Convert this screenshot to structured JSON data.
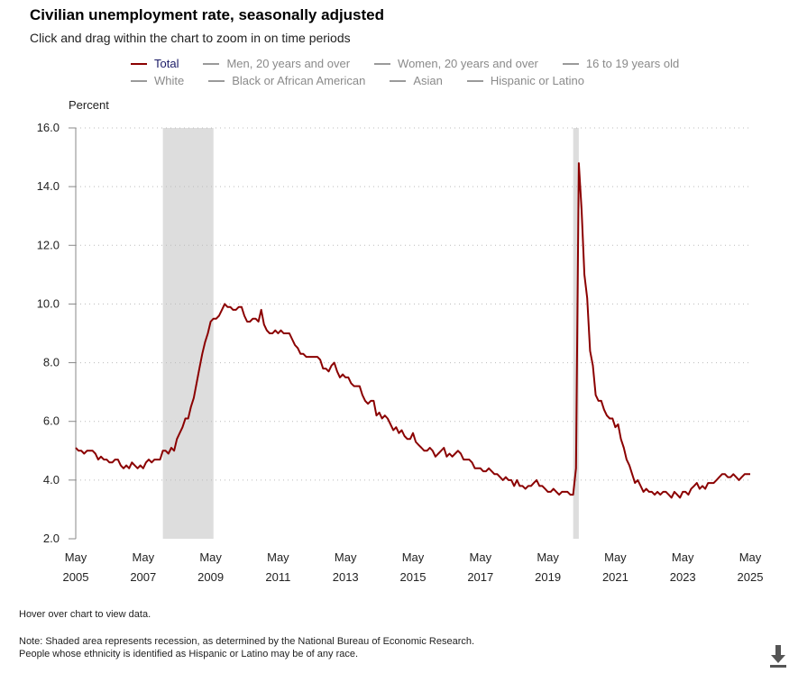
{
  "title": "Civilian unemployment rate, seasonally adjusted",
  "subtitle": "Click and drag within the chart to zoom in on time periods",
  "legend": [
    {
      "label": "Total",
      "active": true
    },
    {
      "label": "Men, 20 years and over",
      "active": false
    },
    {
      "label": "Women, 20 years and over",
      "active": false
    },
    {
      "label": "16 to 19 years old",
      "active": false
    },
    {
      "label": "White",
      "active": false
    },
    {
      "label": "Black or African American",
      "active": false
    },
    {
      "label": "Asian",
      "active": false
    },
    {
      "label": "Hispanic or Latino",
      "active": false
    }
  ],
  "notes": {
    "hover": "Hover over chart to view data.",
    "note1": "Note: Shaded area represents recession, as determined by the National Bureau of Economic Research.",
    "note2": "People whose ethnicity is identified as Hispanic or Latino may be of any race."
  },
  "download_icon": "download-arrow-icon",
  "chart_data": {
    "type": "line",
    "ylabel": "Percent",
    "ylim": [
      2.0,
      16.0
    ],
    "yticks": [
      "2.0",
      "4.0",
      "6.0",
      "8.0",
      "10.0",
      "12.0",
      "14.0",
      "16.0"
    ],
    "xticks": [
      {
        "month": "May",
        "year": "2005"
      },
      {
        "month": "May",
        "year": "2007"
      },
      {
        "month": "May",
        "year": "2009"
      },
      {
        "month": "May",
        "year": "2011"
      },
      {
        "month": "May",
        "year": "2013"
      },
      {
        "month": "May",
        "year": "2015"
      },
      {
        "month": "May",
        "year": "2017"
      },
      {
        "month": "May",
        "year": "2019"
      },
      {
        "month": "May",
        "year": "2021"
      },
      {
        "month": "May",
        "year": "2023"
      },
      {
        "month": "May",
        "year": "2025"
      }
    ],
    "grid": "horizontal dotted",
    "line_color": "#8b0000",
    "recession_color": "#dddddd",
    "recessions": [
      [
        "2007-12",
        "2009-06"
      ],
      [
        "2020-02",
        "2020-04"
      ]
    ],
    "series": [
      {
        "name": "Total",
        "start": "2005-05",
        "frequency": "monthly",
        "values": [
          5.1,
          5.0,
          5.0,
          4.9,
          5.0,
          5.0,
          5.0,
          4.9,
          4.7,
          4.8,
          4.7,
          4.7,
          4.6,
          4.6,
          4.7,
          4.7,
          4.5,
          4.4,
          4.5,
          4.4,
          4.6,
          4.5,
          4.4,
          4.5,
          4.4,
          4.6,
          4.7,
          4.6,
          4.7,
          4.7,
          4.7,
          5.0,
          5.0,
          4.9,
          5.1,
          5.0,
          5.4,
          5.6,
          5.8,
          6.1,
          6.1,
          6.5,
          6.8,
          7.3,
          7.8,
          8.3,
          8.7,
          9.0,
          9.4,
          9.5,
          9.5,
          9.6,
          9.8,
          10.0,
          9.9,
          9.9,
          9.8,
          9.8,
          9.9,
          9.9,
          9.6,
          9.4,
          9.4,
          9.5,
          9.5,
          9.4,
          9.8,
          9.3,
          9.1,
          9.0,
          9.0,
          9.1,
          9.0,
          9.1,
          9.0,
          9.0,
          9.0,
          8.8,
          8.6,
          8.5,
          8.3,
          8.3,
          8.2,
          8.2,
          8.2,
          8.2,
          8.2,
          8.1,
          7.8,
          7.8,
          7.7,
          7.9,
          8.0,
          7.7,
          7.5,
          7.6,
          7.5,
          7.5,
          7.3,
          7.2,
          7.2,
          7.2,
          6.9,
          6.7,
          6.6,
          6.7,
          6.7,
          6.2,
          6.3,
          6.1,
          6.2,
          6.1,
          5.9,
          5.7,
          5.8,
          5.6,
          5.7,
          5.5,
          5.4,
          5.4,
          5.6,
          5.3,
          5.2,
          5.1,
          5.0,
          5.0,
          5.1,
          5.0,
          4.8,
          4.9,
          5.0,
          5.1,
          4.8,
          4.9,
          4.8,
          4.9,
          5.0,
          4.9,
          4.7,
          4.7,
          4.7,
          4.6,
          4.4,
          4.4,
          4.4,
          4.3,
          4.3,
          4.4,
          4.3,
          4.2,
          4.2,
          4.1,
          4.0,
          4.1,
          4.0,
          4.0,
          3.8,
          4.0,
          3.8,
          3.8,
          3.7,
          3.8,
          3.8,
          3.9,
          4.0,
          3.8,
          3.8,
          3.7,
          3.6,
          3.6,
          3.7,
          3.6,
          3.5,
          3.6,
          3.6,
          3.6,
          3.5,
          3.5,
          4.4,
          14.8,
          13.2,
          11.0,
          10.2,
          8.4,
          7.9,
          6.9,
          6.7,
          6.7,
          6.4,
          6.2,
          6.1,
          6.1,
          5.8,
          5.9,
          5.4,
          5.1,
          4.7,
          4.5,
          4.2,
          3.9,
          4.0,
          3.8,
          3.6,
          3.7,
          3.6,
          3.6,
          3.5,
          3.6,
          3.5,
          3.6,
          3.6,
          3.5,
          3.4,
          3.6,
          3.5,
          3.4,
          3.6,
          3.6,
          3.5,
          3.7,
          3.8,
          3.9,
          3.7,
          3.8,
          3.7,
          3.9,
          3.9,
          3.9,
          4.0,
          4.1,
          4.2,
          4.2,
          4.1,
          4.1,
          4.2,
          4.1,
          4.0,
          4.1,
          4.2,
          4.2,
          4.2
        ]
      }
    ]
  }
}
